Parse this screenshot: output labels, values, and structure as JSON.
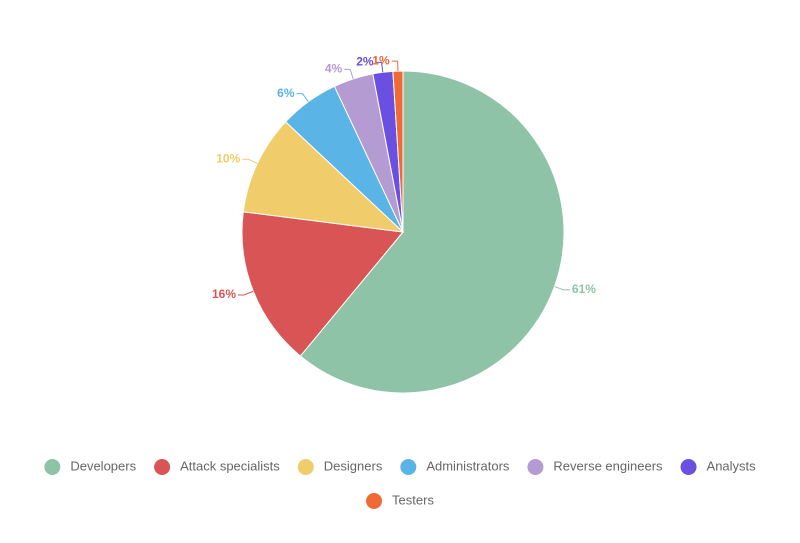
{
  "chart_data": {
    "type": "pie",
    "categories": [
      "Developers",
      "Attack specialists",
      "Designers",
      "Administrators",
      "Reverse engineers",
      "Analysts",
      "Testers"
    ],
    "values": [
      61,
      16,
      10,
      6,
      4,
      2,
      1
    ],
    "value_labels": [
      "61%",
      "16%",
      "10%",
      "6%",
      "4%",
      "2%",
      "1%"
    ],
    "colors": [
      "#8fc3a7",
      "#d95555",
      "#f0cc6a",
      "#5ab4e5",
      "#b49bd1",
      "#6a4fe0",
      "#f06a35"
    ],
    "legend": "bottom"
  }
}
